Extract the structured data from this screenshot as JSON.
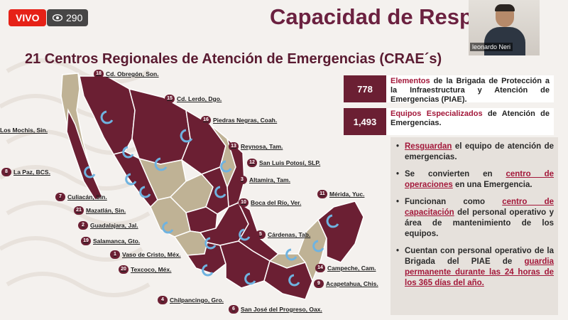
{
  "stream": {
    "live_label": "VIVO",
    "viewers": "290"
  },
  "slide": {
    "title": "Capacidad de Resp",
    "subtitle": "21 Centros Regionales de Atención de Emergencias (CRAE´s)"
  },
  "webcam": {
    "name": "leonardo Neri"
  },
  "stats": [
    {
      "value": "778",
      "hl": "Elementos",
      "text": " de la Brigada de Protección a la Infraestructura y Atención de Emergencias (PIAE)."
    },
    {
      "value": "1,493",
      "hl": "Equipos Especializados",
      "text": " de Atención de Emergencias."
    }
  ],
  "bullets": [
    {
      "pre": "",
      "hl": "Resguardan",
      "post": " el equipo de atención de emergencias."
    },
    {
      "pre": "Se convierten en ",
      "hl": "centro de operaciones",
      "post": " en una Emergencia."
    },
    {
      "pre": "Funcionan como ",
      "hl": "centro de capacitación",
      "post": " del personal operativo y área de mantenimiento de los equipos."
    },
    {
      "pre": "Cuentan con personal operativo de la Brigada del PIAE de ",
      "hl": "guardia permanente durante las 24 horas de los 365 días del año.",
      "post": ""
    }
  ],
  "centers": [
    {
      "n": "18",
      "name": "Cd. Obregón, Son."
    },
    {
      "n": "15",
      "name": "Cd. Lerdo, Dgo."
    },
    {
      "n": "16",
      "name": "Piedras Negras, Coah."
    },
    {
      "n": "",
      "name": "Los Mochis, Sin."
    },
    {
      "n": "13",
      "name": "Reynosa, Tam."
    },
    {
      "n": "12",
      "name": "San Luis Potosí, SLP."
    },
    {
      "n": "8",
      "name": "La Paz, BCS."
    },
    {
      "n": "3",
      "name": "Altamira, Tam."
    },
    {
      "n": "7",
      "name": "Culiacán, Sin."
    },
    {
      "n": "11",
      "name": "Mérida, Yuc."
    },
    {
      "n": "10",
      "name": "Boca del Río, Ver."
    },
    {
      "n": "21",
      "name": "Mazatlán, Sin."
    },
    {
      "n": "2",
      "name": "Guadalajara, Jal."
    },
    {
      "n": "5",
      "name": "Cárdenas, Tab."
    },
    {
      "n": "19",
      "name": "Salamanca, Gto."
    },
    {
      "n": "1",
      "name": "Vaso de Cristo, Méx."
    },
    {
      "n": "20",
      "name": "Texcoco, Méx."
    },
    {
      "n": "14",
      "name": "Campeche, Cam."
    },
    {
      "n": "9",
      "name": "Acapetahua, Chis."
    },
    {
      "n": "4",
      "name": "Chilpancingo, Gro."
    },
    {
      "n": "6",
      "name": "San José del Progreso, Oax."
    }
  ],
  "colors": {
    "maroon": "#6b1f33",
    "khaki": "#bfb295",
    "accent": "#a3183a",
    "live": "#e62117"
  }
}
